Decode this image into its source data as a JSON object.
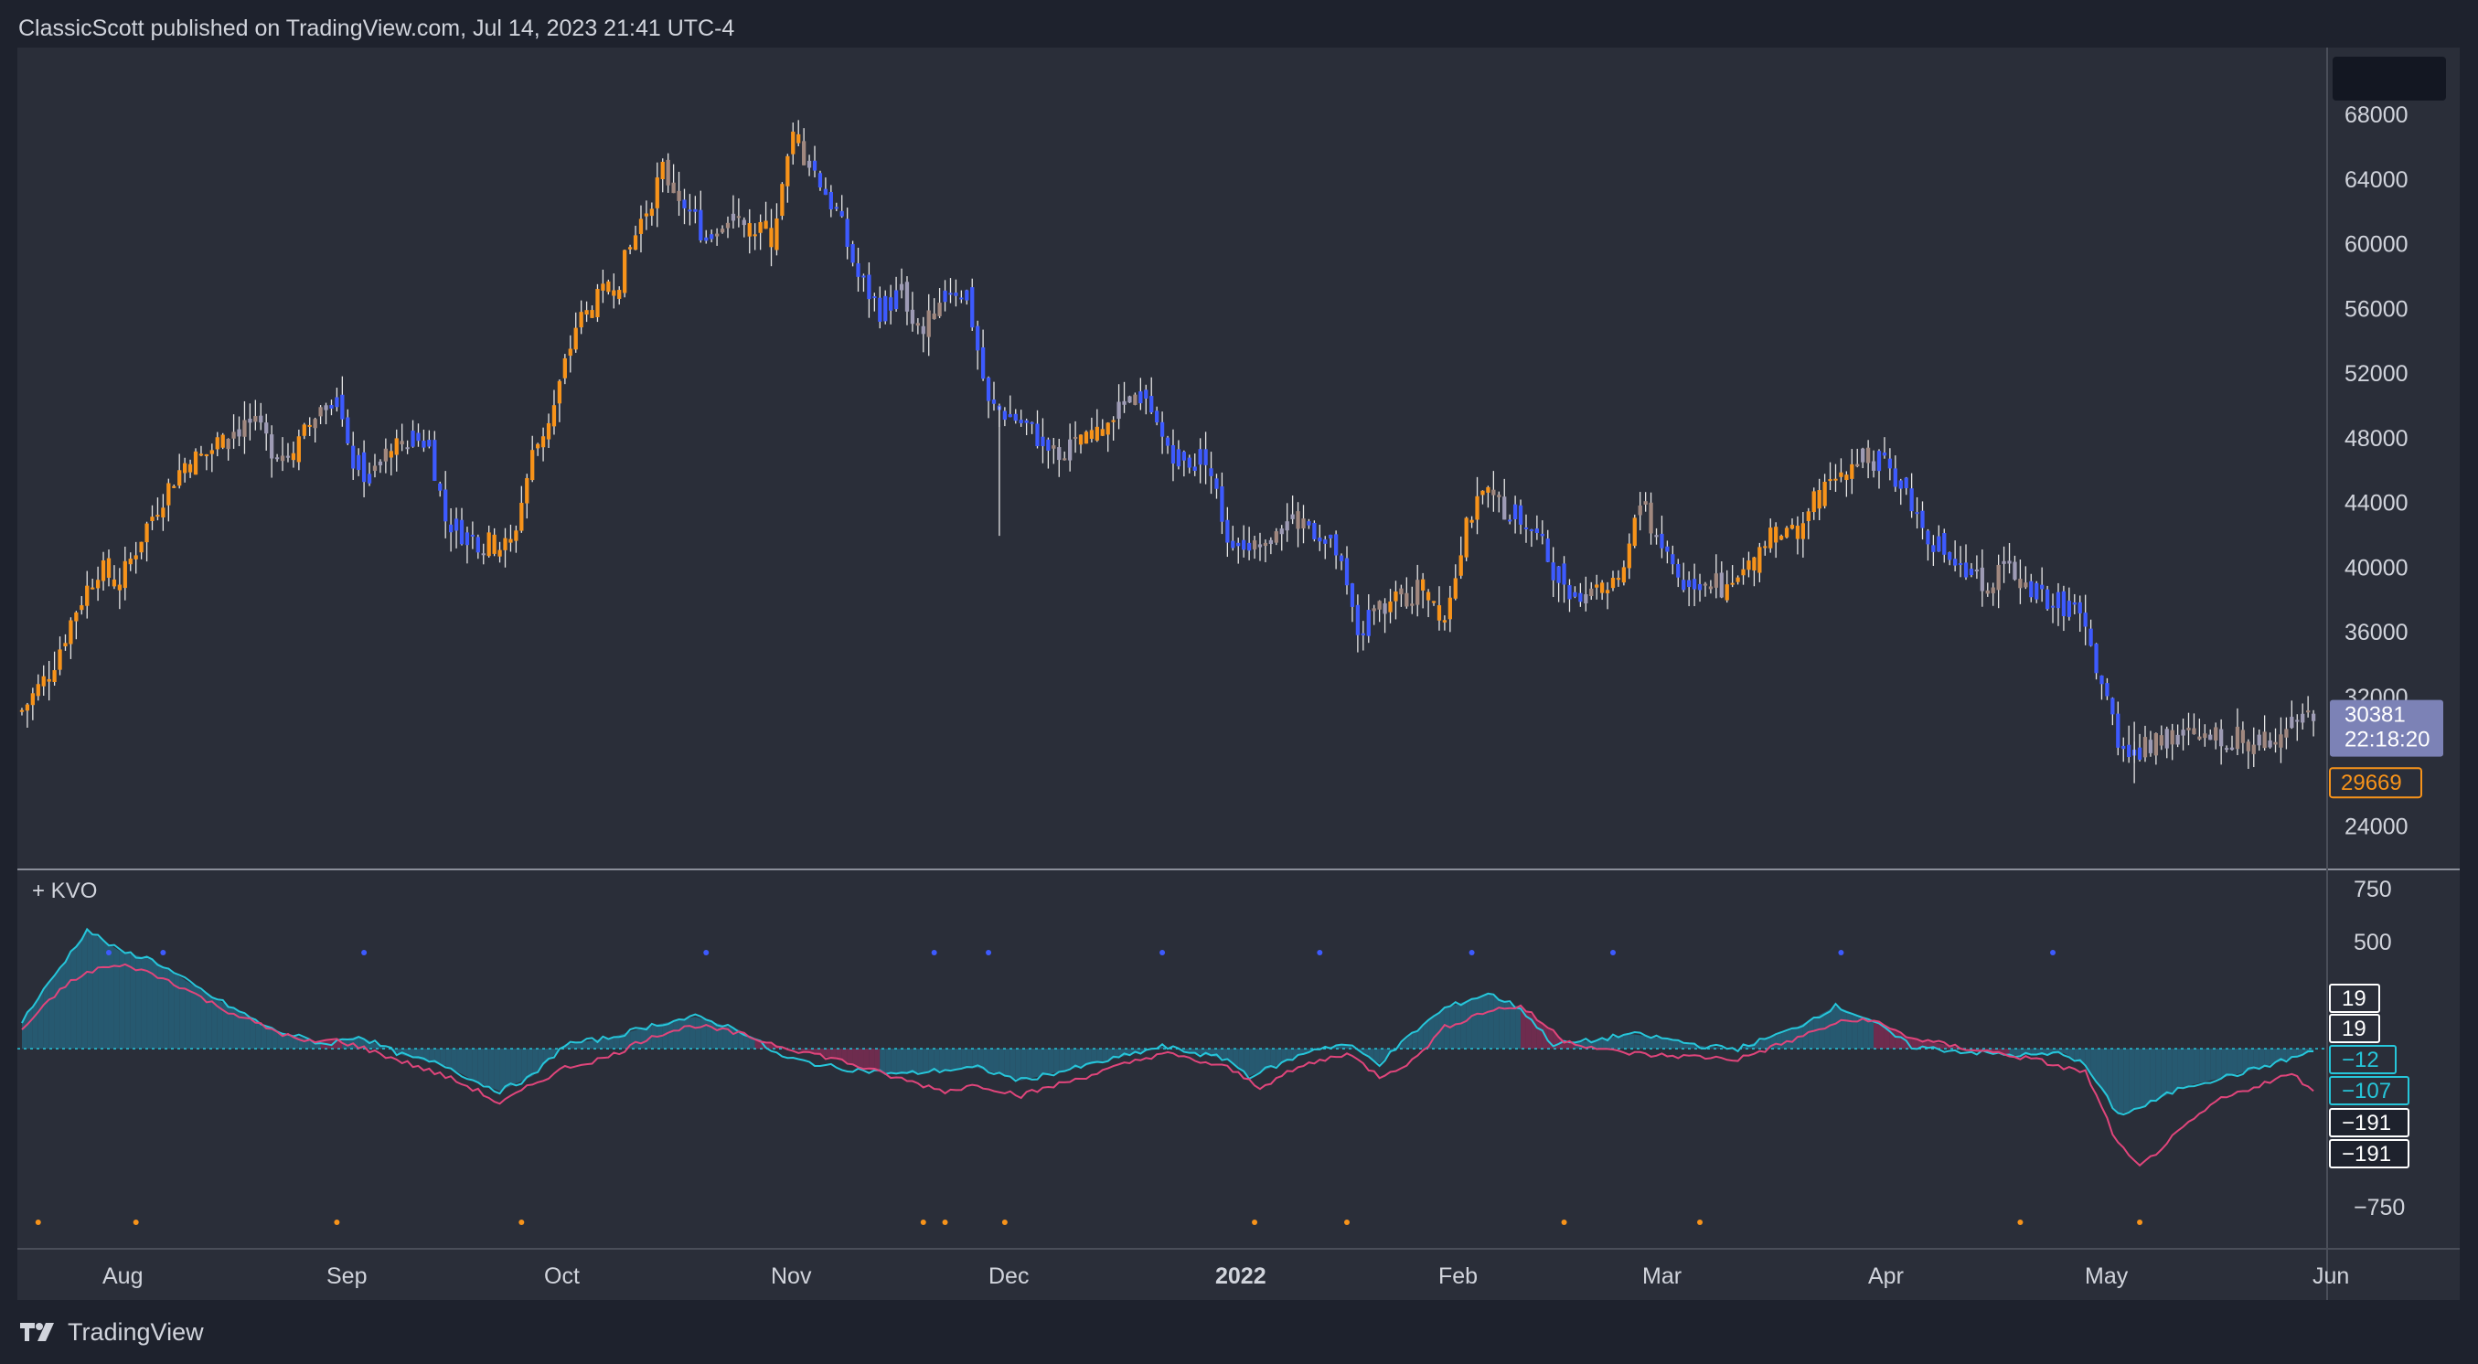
{
  "header": {
    "publish_line": "ClassicScott published on TradingView.com, Jul 14, 2023 21:41 UTC-4"
  },
  "footer": {
    "brand": "TradingView"
  },
  "colors": {
    "background": "#1e222d",
    "pane": "#2a2e39",
    "text": "#d1d4dc",
    "bull_orange": "#f7931a",
    "bear_blue": "#3d5afe",
    "neutral_gray": "#9e9bb5",
    "neutral_brown": "#a1887f",
    "kvo_fast": "#26c6da",
    "kvo_slow": "#e0457b",
    "fill_bull": "#26607a",
    "fill_bear": "#7a2c52"
  },
  "chart_data": [
    {
      "type": "candlestick",
      "symbol_panel": "price",
      "y_tick_labels": [
        "68000",
        "64000",
        "60000",
        "56000",
        "52000",
        "48000",
        "44000",
        "40000",
        "36000",
        "32000",
        "24000"
      ],
      "ylim": [
        22500,
        70500
      ],
      "x_tick_labels": [
        "Aug",
        "Sep",
        "Oct",
        "Nov",
        "Dec",
        "2022",
        "Feb",
        "Mar",
        "Apr",
        "May",
        "Jun"
      ],
      "last_price_label": "30381",
      "countdown_label": "22:18:20",
      "marker_price_label": "29669",
      "close_path": [
        [
          0,
          31200
        ],
        [
          5,
          33500
        ],
        [
          10,
          37500
        ],
        [
          14,
          40000
        ],
        [
          18,
          39000
        ],
        [
          22,
          42000
        ],
        [
          26,
          44500
        ],
        [
          30,
          46500
        ],
        [
          34,
          47000
        ],
        [
          38,
          48500
        ],
        [
          42,
          49000
        ],
        [
          46,
          47500
        ],
        [
          50,
          47000
        ],
        [
          54,
          49500
        ],
        [
          58,
          51000
        ],
        [
          60,
          47000
        ],
        [
          64,
          45500
        ],
        [
          68,
          47500
        ],
        [
          72,
          48000
        ],
        [
          75,
          47800
        ],
        [
          78,
          43000
        ],
        [
          82,
          42000
        ],
        [
          86,
          41500
        ],
        [
          90,
          41300
        ],
        [
          94,
          47000
        ],
        [
          98,
          50000
        ],
        [
          102,
          55000
        ],
        [
          106,
          56500
        ],
        [
          110,
          58000
        ],
        [
          114,
          61500
        ],
        [
          118,
          64500
        ],
        [
          122,
          62500
        ],
        [
          126,
          60500
        ],
        [
          130,
          62000
        ],
        [
          134,
          61000
        ],
        [
          138,
          60500
        ],
        [
          142,
          66500
        ],
        [
          146,
          64500
        ],
        [
          150,
          62000
        ],
        [
          154,
          58000
        ],
        [
          158,
          56000
        ],
        [
          162,
          57000
        ],
        [
          166,
          54500
        ],
        [
          170,
          57500
        ],
        [
          174,
          57000
        ],
        [
          178,
          50000
        ],
        [
          182,
          49500
        ],
        [
          186,
          48500
        ],
        [
          190,
          47000
        ],
        [
          194,
          47500
        ],
        [
          198,
          48000
        ],
        [
          202,
          50500
        ],
        [
          206,
          50500
        ],
        [
          210,
          48000
        ],
        [
          214,
          46500
        ],
        [
          218,
          47000
        ],
        [
          222,
          42000
        ],
        [
          226,
          41500
        ],
        [
          230,
          42500
        ],
        [
          234,
          43000
        ],
        [
          238,
          42500
        ],
        [
          242,
          41000
        ],
        [
          246,
          36000
        ],
        [
          250,
          37500
        ],
        [
          254,
          38000
        ],
        [
          258,
          39000
        ],
        [
          262,
          37000
        ],
        [
          266,
          43000
        ],
        [
          270,
          44500
        ],
        [
          274,
          43500
        ],
        [
          278,
          42500
        ],
        [
          282,
          40000
        ],
        [
          286,
          38500
        ],
        [
          290,
          39000
        ],
        [
          294,
          38500
        ],
        [
          298,
          44000
        ],
        [
          302,
          41500
        ],
        [
          306,
          39000
        ],
        [
          310,
          39500
        ],
        [
          314,
          38500
        ],
        [
          318,
          40000
        ],
        [
          322,
          42500
        ],
        [
          326,
          42000
        ],
        [
          330,
          44000
        ],
        [
          334,
          45500
        ],
        [
          338,
          47000
        ],
        [
          342,
          46500
        ],
        [
          346,
          45500
        ],
        [
          350,
          42500
        ],
        [
          354,
          41000
        ],
        [
          358,
          39500
        ],
        [
          362,
          39000
        ],
        [
          366,
          40000
        ],
        [
          370,
          38500
        ],
        [
          374,
          38000
        ],
        [
          378,
          37500
        ],
        [
          382,
          34000
        ],
        [
          386,
          29500
        ],
        [
          390,
          28500
        ],
        [
          394,
          29800
        ],
        [
          398,
          29500
        ],
        [
          402,
          29300
        ],
        [
          406,
          29600
        ],
        [
          410,
          29200
        ],
        [
          414,
          29500
        ],
        [
          418,
          31000
        ],
        [
          422,
          30381
        ]
      ]
    },
    {
      "type": "line",
      "indicator_label": "+ KVO",
      "y_tick_labels": [
        "750",
        "500",
        "−500",
        "−750"
      ],
      "ylim": [
        -900,
        780
      ],
      "value_labels": [
        "19",
        "19",
        "−12",
        "−107",
        "−191",
        "−191"
      ],
      "series": [
        {
          "name": "",
          "color": "#26c6da",
          "points": [
            [
              0,
              130
            ],
            [
              12,
              560
            ],
            [
              18,
              460
            ],
            [
              24,
              420
            ],
            [
              34,
              260
            ],
            [
              46,
              90
            ],
            [
              56,
              20
            ],
            [
              62,
              60
            ],
            [
              70,
              -30
            ],
            [
              78,
              -80
            ],
            [
              84,
              -160
            ],
            [
              88,
              -200
            ],
            [
              94,
              -130
            ],
            [
              100,
              20
            ],
            [
              108,
              50
            ],
            [
              116,
              110
            ],
            [
              124,
              150
            ],
            [
              132,
              90
            ],
            [
              140,
              -40
            ],
            [
              150,
              -90
            ],
            [
              162,
              -120
            ],
            [
              170,
              -100
            ],
            [
              176,
              -90
            ],
            [
              184,
              -150
            ],
            [
              196,
              -80
            ],
            [
              210,
              10
            ],
            [
              222,
              -50
            ],
            [
              226,
              -130
            ],
            [
              232,
              -70
            ],
            [
              238,
              0
            ],
            [
              244,
              20
            ],
            [
              250,
              -70
            ],
            [
              256,
              70
            ],
            [
              262,
              190
            ],
            [
              270,
              260
            ],
            [
              276,
              190
            ],
            [
              282,
              20
            ],
            [
              290,
              40
            ],
            [
              296,
              70
            ],
            [
              302,
              50
            ],
            [
              310,
              10
            ],
            [
              316,
              0
            ],
            [
              326,
              90
            ],
            [
              334,
              200
            ],
            [
              340,
              140
            ],
            [
              348,
              10
            ],
            [
              356,
              -10
            ],
            [
              366,
              -30
            ],
            [
              372,
              -30
            ],
            [
              376,
              -20
            ],
            [
              380,
              -80
            ],
            [
              386,
              -310
            ],
            [
              390,
              -280
            ],
            [
              398,
              -180
            ],
            [
              408,
              -120
            ],
            [
              416,
              -60
            ],
            [
              422,
              -12
            ]
          ]
        },
        {
          "name": "",
          "color": "#e0457b",
          "points": [
            [
              0,
              90
            ],
            [
              8,
              300
            ],
            [
              14,
              380
            ],
            [
              20,
              390
            ],
            [
              28,
              310
            ],
            [
              36,
              200
            ],
            [
              44,
              110
            ],
            [
              52,
              30
            ],
            [
              58,
              40
            ],
            [
              62,
              10
            ],
            [
              70,
              -60
            ],
            [
              78,
              -130
            ],
            [
              84,
              -200
            ],
            [
              88,
              -260
            ],
            [
              94,
              -170
            ],
            [
              100,
              -90
            ],
            [
              108,
              -40
            ],
            [
              116,
              60
            ],
            [
              124,
              110
            ],
            [
              132,
              70
            ],
            [
              140,
              10
            ],
            [
              150,
              -50
            ],
            [
              160,
              -130
            ],
            [
              170,
              -200
            ],
            [
              176,
              -170
            ],
            [
              184,
              -220
            ],
            [
              196,
              -130
            ],
            [
              210,
              -20
            ],
            [
              222,
              -90
            ],
            [
              228,
              -180
            ],
            [
              236,
              -80
            ],
            [
              244,
              -20
            ],
            [
              250,
              -130
            ],
            [
              256,
              -60
            ],
            [
              262,
              100
            ],
            [
              270,
              180
            ],
            [
              276,
              200
            ],
            [
              284,
              40
            ],
            [
              292,
              -10
            ],
            [
              300,
              -30
            ],
            [
              310,
              -40
            ],
            [
              316,
              -50
            ],
            [
              326,
              40
            ],
            [
              334,
              120
            ],
            [
              340,
              140
            ],
            [
              348,
              50
            ],
            [
              356,
              10
            ],
            [
              366,
              -30
            ],
            [
              372,
              -60
            ],
            [
              376,
              -90
            ],
            [
              380,
              -110
            ],
            [
              386,
              -450
            ],
            [
              390,
              -560
            ],
            [
              396,
              -420
            ],
            [
              404,
              -250
            ],
            [
              412,
              -170
            ],
            [
              418,
              -120
            ],
            [
              422,
              -191
            ]
          ]
        }
      ],
      "dots_top_blue_x": [
        16,
        26,
        63,
        126,
        168,
        178,
        210,
        239,
        267,
        293,
        335,
        374
      ],
      "dots_bottom_orange_x": [
        3,
        21,
        58,
        92,
        166,
        170,
        181,
        227,
        244,
        284,
        309,
        368,
        390
      ]
    }
  ],
  "axis": {
    "x_ticks": [
      {
        "label": "Aug",
        "bold": false
      },
      {
        "label": "Sep",
        "bold": false
      },
      {
        "label": "Oct",
        "bold": false
      },
      {
        "label": "Nov",
        "bold": false
      },
      {
        "label": "Dec",
        "bold": false
      },
      {
        "label": "2022",
        "bold": true
      },
      {
        "label": "Feb",
        "bold": false
      },
      {
        "label": "Mar",
        "bold": false
      },
      {
        "label": "Apr",
        "bold": false
      },
      {
        "label": "May",
        "bold": false
      },
      {
        "label": "Jun",
        "bold": false
      }
    ]
  }
}
